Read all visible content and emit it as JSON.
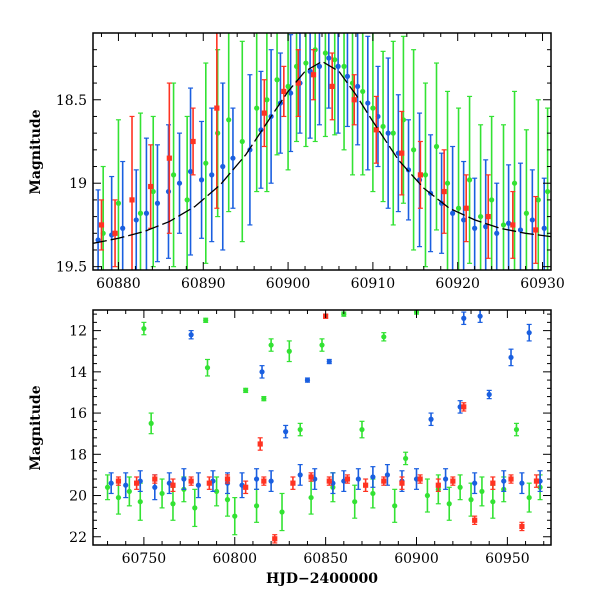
{
  "chart_data": [
    {
      "type": "scatter",
      "panel": "top",
      "title": "",
      "xlabel": "",
      "ylabel": "Magnitude",
      "xlim": [
        60877,
        60931
      ],
      "ylim": [
        19.52,
        18.1
      ],
      "y_inverted": true,
      "xticks": [
        60880,
        60890,
        60900,
        60910,
        60920,
        60930
      ],
      "yticks": [
        18.5,
        19,
        19.5
      ],
      "xtick_labels": [
        "60880",
        "60890",
        "60900",
        "60910",
        "60920",
        "60930"
      ],
      "ytick_labels": [
        "18.5",
        "19",
        "19.5"
      ],
      "colors": {
        "green": "#33e233",
        "blue": "#1a5fe0",
        "red": "#ff3322",
        "model": "#000000"
      },
      "model_curve": {
        "name": "model",
        "style": "long-dash",
        "x": [
          60877,
          60880,
          60883,
          60886,
          60889,
          60892,
          60895,
          60898,
          60900,
          60902,
          60904,
          60906,
          60908,
          60910,
          60913,
          60916,
          60919,
          60922,
          60925,
          60928,
          60931
        ],
        "y": [
          19.36,
          19.33,
          19.29,
          19.23,
          19.14,
          19.01,
          18.83,
          18.6,
          18.45,
          18.33,
          18.27,
          18.33,
          18.47,
          18.63,
          18.86,
          19.03,
          19.15,
          19.22,
          19.27,
          19.3,
          19.32
        ]
      },
      "series": [
        {
          "name": "blue",
          "color": "#1a5fe0",
          "x": [
            60877.6,
            60879.2,
            60880.5,
            60882.1,
            60883.3,
            60884.6,
            60885.9,
            60887.2,
            60888.5,
            60889.8,
            60891.0,
            60892.3,
            60893.5,
            60895.5,
            60896.8,
            60898.0,
            60899.1,
            60900.3,
            60901.4,
            60902.6,
            60903.7,
            60904.8,
            60905.9,
            60907.0,
            60908.2,
            60909.4,
            60910.6,
            60911.8,
            60913.0,
            60914.2,
            60915.5,
            60916.8,
            60918.1,
            60919.4,
            60920.7,
            60922.0,
            60923.3,
            60924.6,
            60926.0,
            60927.4,
            60928.8,
            60930.2
          ],
          "y": [
            19.34,
            19.31,
            19.27,
            19.22,
            19.18,
            19.12,
            19.05,
            19.0,
            18.93,
            18.98,
            18.95,
            18.9,
            18.85,
            18.8,
            18.68,
            18.6,
            18.52,
            18.46,
            18.4,
            18.33,
            18.3,
            18.25,
            18.3,
            18.36,
            18.42,
            18.52,
            18.6,
            18.7,
            18.82,
            18.92,
            18.98,
            19.06,
            19.12,
            19.18,
            19.22,
            19.27,
            19.26,
            19.3,
            19.24,
            19.28,
            19.22,
            19.27
          ],
          "err": [
            0.3,
            0.35,
            0.4,
            0.3,
            0.45,
            0.35,
            0.4,
            0.3,
            0.5,
            0.35,
            0.4,
            0.5,
            0.3,
            0.45,
            0.35,
            0.4,
            0.3,
            0.35,
            0.3,
            0.4,
            0.35,
            0.3,
            0.4,
            0.3,
            0.35,
            0.4,
            0.3,
            0.45,
            0.35,
            0.3,
            0.4,
            0.35,
            0.3,
            0.4,
            0.35,
            0.3,
            0.4,
            0.3,
            0.35,
            0.4,
            0.3,
            0.3
          ]
        },
        {
          "name": "green",
          "color": "#33e233",
          "x": [
            60878.2,
            60880.0,
            60882.6,
            60884.1,
            60886.5,
            60888.1,
            60890.3,
            60891.7,
            60893.0,
            60894.6,
            60896.3,
            60897.5,
            60898.7,
            60900.0,
            60901.0,
            60902.1,
            60903.2,
            60904.4,
            60905.5,
            60906.6,
            60907.6,
            60908.8,
            60910.0,
            60911.2,
            60912.4,
            60913.6,
            60914.8,
            60916.2,
            60917.5,
            60918.8,
            60920.1,
            60921.4,
            60922.7,
            60924.0,
            60925.4,
            60926.7,
            60928.1,
            60929.5,
            60930.6
          ],
          "y": [
            19.3,
            19.12,
            19.18,
            19.05,
            18.95,
            19.1,
            18.88,
            18.7,
            18.62,
            18.75,
            18.55,
            18.5,
            18.38,
            18.42,
            18.3,
            18.28,
            18.2,
            18.22,
            18.26,
            18.3,
            18.4,
            18.45,
            18.55,
            18.66,
            18.7,
            18.62,
            18.8,
            18.95,
            18.78,
            19.0,
            19.15,
            18.98,
            19.2,
            19.1,
            19.25,
            19.0,
            19.18,
            19.1,
            19.05
          ],
          "err": [
            0.4,
            0.5,
            0.6,
            0.45,
            0.55,
            0.5,
            0.6,
            0.5,
            0.55,
            0.6,
            0.5,
            0.55,
            0.45,
            0.5,
            0.45,
            0.5,
            0.55,
            0.5,
            0.45,
            0.5,
            0.55,
            0.5,
            0.5,
            0.45,
            0.55,
            0.5,
            0.6,
            0.55,
            0.5,
            0.55,
            0.6,
            0.5,
            0.55,
            0.5,
            0.6,
            0.55,
            0.5,
            0.6,
            0.5
          ]
        },
        {
          "name": "red",
          "color": "#ff3322",
          "x": [
            60878.0,
            60879.6,
            60881.6,
            60883.8,
            60886.0,
            60888.8,
            60891.6,
            60897.2,
            60899.5,
            60901.2,
            60903.0,
            60905.2,
            60907.8,
            60910.4,
            60913.4,
            60915.6,
            60918.4,
            60921.0,
            60923.6,
            60926.5,
            60929.2
          ],
          "y": [
            19.25,
            19.3,
            19.1,
            19.02,
            18.85,
            18.75,
            18.55,
            18.58,
            18.45,
            18.4,
            18.35,
            18.42,
            18.5,
            18.68,
            18.82,
            18.95,
            19.05,
            19.15,
            19.2,
            19.25,
            19.28
          ],
          "err": [
            0.15,
            0.2,
            0.5,
            0.25,
            0.45,
            0.2,
            0.6,
            0.2,
            0.15,
            0.2,
            0.15,
            0.2,
            0.15,
            0.2,
            0.25,
            0.2,
            0.25,
            0.2,
            0.25,
            0.2,
            0.2
          ]
        }
      ]
    },
    {
      "type": "scatter",
      "panel": "bottom",
      "title": "",
      "xlabel": "HJD−2400000",
      "ylabel": "Magnitude",
      "xlim": [
        60722,
        60974
      ],
      "ylim": [
        22.4,
        11.0
      ],
      "y_inverted": true,
      "xticks": [
        60750,
        60800,
        60850,
        60900,
        60950
      ],
      "yticks": [
        12,
        14,
        16,
        18,
        20,
        22
      ],
      "xtick_labels": [
        "60750",
        "60800",
        "60850",
        "60900",
        "60950"
      ],
      "ytick_labels": [
        "12",
        "14",
        "16",
        "18",
        "20",
        "22"
      ],
      "series": [
        {
          "name": "green",
          "color": "#33e233",
          "x": [
            60730,
            60736,
            60742,
            60748,
            60750,
            60754,
            60760,
            60766,
            60772,
            60778,
            60784,
            60785,
            60790,
            60796,
            60800,
            60806,
            60812,
            60816,
            60820,
            60826,
            60830,
            60836,
            60842,
            60848,
            60854,
            60860,
            60866,
            60870,
            60876,
            60882,
            60888,
            60894,
            60900,
            60906,
            60912,
            60918,
            60924,
            60930,
            60936,
            60942,
            60948,
            60955,
            60962,
            60968
          ],
          "y": [
            19.6,
            20.1,
            19.8,
            20.3,
            11.9,
            16.5,
            19.9,
            20.4,
            19.7,
            20.6,
            11.5,
            13.8,
            19.8,
            20.2,
            21.0,
            14.9,
            20.5,
            15.3,
            12.7,
            20.8,
            13.0,
            16.8,
            20.1,
            12.7,
            19.6,
            11.2,
            20.3,
            16.8,
            19.9,
            12.3,
            20.5,
            18.2,
            11.1,
            20.0,
            19.7,
            20.4,
            19.6,
            20.2,
            19.8,
            20.3,
            19.7,
            16.8,
            20.1,
            19.6
          ],
          "err": [
            0.6,
            0.8,
            0.7,
            0.9,
            0.3,
            0.5,
            0.7,
            0.8,
            0.6,
            0.9,
            0.1,
            0.4,
            0.7,
            0.8,
            0.9,
            0.1,
            0.8,
            0.1,
            0.3,
            0.9,
            0.5,
            0.3,
            0.8,
            0.3,
            0.7,
            0.1,
            0.8,
            0.4,
            0.7,
            0.2,
            0.8,
            0.3,
            0.1,
            0.8,
            0.7,
            0.8,
            0.6,
            0.8,
            0.7,
            0.8,
            0.6,
            0.3,
            0.7,
            0.6
          ]
        },
        {
          "name": "blue",
          "color": "#1a5fe0",
          "x": [
            60732,
            60740,
            60748,
            60756,
            60764,
            60772,
            60776,
            60780,
            60788,
            60796,
            60804,
            60812,
            60815,
            60820,
            60828,
            60836,
            60840,
            60844,
            60852,
            60854,
            60860,
            60868,
            60876,
            60884,
            60892,
            60900,
            60908,
            60916,
            60924,
            60926,
            60932,
            60935,
            60940,
            60948,
            60952,
            60958,
            60962,
            60968
          ],
          "y": [
            19.4,
            19.5,
            19.3,
            19.6,
            19.4,
            19.2,
            12.2,
            19.5,
            19.3,
            19.4,
            19.5,
            19.2,
            14.0,
            19.3,
            16.9,
            19.0,
            14.4,
            19.2,
            13.5,
            19.4,
            19.3,
            19.2,
            19.1,
            19.0,
            19.3,
            19.2,
            16.3,
            19.2,
            15.7,
            11.4,
            19.4,
            11.3,
            15.1,
            19.3,
            13.3,
            19.4,
            12.1,
            19.3
          ],
          "err": [
            0.5,
            0.6,
            0.5,
            0.6,
            0.5,
            0.5,
            0.2,
            0.6,
            0.5,
            0.5,
            0.6,
            0.5,
            0.3,
            0.5,
            0.3,
            0.5,
            0.1,
            0.5,
            0.1,
            0.5,
            0.5,
            0.5,
            0.5,
            0.5,
            0.5,
            0.5,
            0.3,
            0.5,
            0.3,
            0.3,
            0.5,
            0.3,
            0.2,
            0.5,
            0.4,
            0.5,
            0.4,
            0.5
          ]
        },
        {
          "name": "red",
          "color": "#ff3322",
          "x": [
            60736,
            60746,
            60756,
            60766,
            60776,
            60786,
            60796,
            60806,
            60814,
            60816,
            60822,
            60832,
            60842,
            60850,
            60852,
            60862,
            60872,
            60882,
            60892,
            60902,
            60912,
            60920,
            60926,
            60932,
            60942,
            60952,
            60958,
            60966
          ],
          "y": [
            19.3,
            19.4,
            19.2,
            19.5,
            19.3,
            19.4,
            19.2,
            19.6,
            17.5,
            19.3,
            22.1,
            19.4,
            19.1,
            11.3,
            19.3,
            19.2,
            19.5,
            19.3,
            19.4,
            19.2,
            19.5,
            19.3,
            15.7,
            21.2,
            19.4,
            19.2,
            21.5,
            19.3
          ],
          "err": [
            0.2,
            0.3,
            0.2,
            0.3,
            0.2,
            0.3,
            0.2,
            0.3,
            0.3,
            0.2,
            0.2,
            0.3,
            0.2,
            0.1,
            0.2,
            0.2,
            0.3,
            0.2,
            0.3,
            0.2,
            0.3,
            0.2,
            0.2,
            0.2,
            0.3,
            0.2,
            0.2,
            0.3
          ]
        }
      ]
    }
  ]
}
